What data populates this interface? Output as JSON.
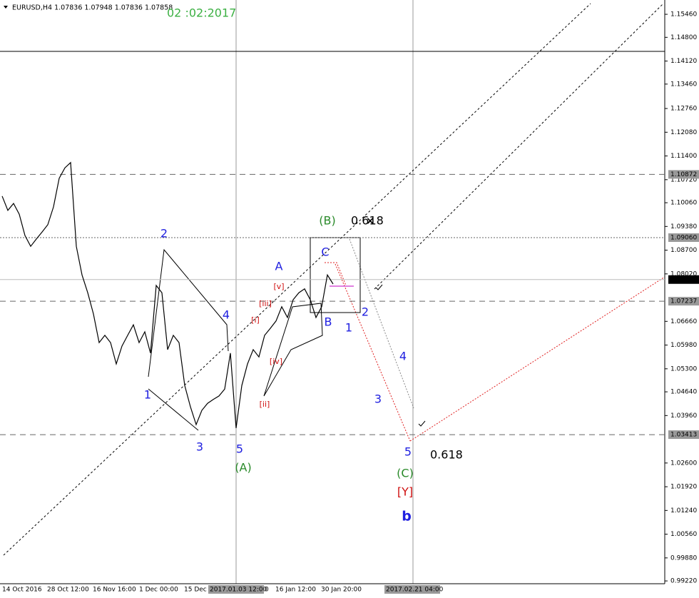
{
  "chart_data": {
    "type": "line",
    "title": "EURUSD,H4  1.07836 1.07948 1.07836 1.07858",
    "subtitle": "02 :02:2017",
    "ylim": [
      0.9914,
      1.1587
    ],
    "yticks": [
      {
        "value": 1.1546,
        "label": "1.15460"
      },
      {
        "value": 1.148,
        "label": "1.14800"
      },
      {
        "value": 1.1412,
        "label": "1.14120"
      },
      {
        "value": 1.1346,
        "label": "1.13460"
      },
      {
        "value": 1.1276,
        "label": "1.12760"
      },
      {
        "value": 1.1208,
        "label": "1.12080"
      },
      {
        "value": 1.114,
        "label": "1.11400"
      },
      {
        "value": 1.1072,
        "label": "1.10720"
      },
      {
        "value": 1.1006,
        "label": "1.10060"
      },
      {
        "value": 1.0938,
        "label": "1.09380"
      },
      {
        "value": 1.087,
        "label": "1.08700"
      },
      {
        "value": 1.0802,
        "label": "1.08020"
      },
      {
        "value": 1.0666,
        "label": "1.06660"
      },
      {
        "value": 1.0598,
        "label": "1.05980"
      },
      {
        "value": 1.053,
        "label": "1.05300"
      },
      {
        "value": 1.0464,
        "label": "1.04640"
      },
      {
        "value": 1.0396,
        "label": "1.03960"
      },
      {
        "value": 1.026,
        "label": "1.02600"
      },
      {
        "value": 1.0192,
        "label": "1.01920"
      },
      {
        "value": 1.0124,
        "label": "1.01240"
      },
      {
        "value": 1.0056,
        "label": "1.00560"
      },
      {
        "value": 0.9988,
        "label": "0.99880"
      },
      {
        "value": 0.9922,
        "label": "0.99220"
      }
    ],
    "levels": [
      1.10872,
      {
        "value": 1.0906,
        "label": "1.09060"
      },
      1.07858,
      1.07237,
      1.03413
    ],
    "x_labels": [
      "14 Oct 2016",
      "28 Oct 12:00",
      "16 Nov 16:00",
      "1 Dec 00:00",
      "15 Dec",
      "0",
      "16 Jan 12:00",
      "30 Jan 20:00",
      "2017.01.03 12:00",
      "2017.02.21 04:00"
    ],
    "color": "#000000",
    "values": [
      1.1025,
      1.0984,
      1.1004,
      1.0973,
      1.0912,
      1.0881,
      1.0902,
      1.0922,
      1.0943,
      1.0994,
      1.1076,
      1.1106,
      1.1121,
      1.0881,
      1.0799,
      1.0748,
      1.0687,
      1.0605,
      1.0626,
      1.0605,
      1.0544,
      1.0595,
      1.0626,
      1.0656,
      1.0605,
      1.0636,
      1.0575,
      1.0769,
      1.0748,
      1.0585,
      1.0626,
      1.0605,
      1.0482,
      1.0421,
      1.037,
      1.0411,
      1.0431,
      1.0442,
      1.0452,
      1.0472,
      1.0575,
      1.036,
      1.0482,
      1.0544,
      1.0585,
      1.0564,
      1.0626,
      1.0646,
      1.0667,
      1.0708,
      1.0677,
      1.0728,
      1.0748,
      1.0759,
      1.0728,
      1.0677,
      1.0708,
      1.0799,
      1.0773
    ],
    "annotations": [
      {
        "text": "2",
        "color": "#2020e0"
      },
      {
        "text": "4",
        "color": "#2020e0"
      },
      {
        "text": "1",
        "color": "#2020e0"
      },
      {
        "text": "3",
        "color": "#2020e0"
      },
      {
        "text": "5",
        "color": "#2020e0"
      },
      {
        "text": "(A)",
        "color": "#2a8a2a"
      },
      {
        "text": "A",
        "color": "#2020e0"
      },
      {
        "text": "[v]",
        "color": "#d01010"
      },
      {
        "text": "[iii]",
        "color": "#d01010"
      },
      {
        "text": "[i]",
        "color": "#d01010"
      },
      {
        "text": "[iv]",
        "color": "#d01010"
      },
      {
        "text": "[ii]",
        "color": "#d01010"
      },
      {
        "text": "C",
        "color": "#2020e0"
      },
      {
        "text": "B",
        "color": "#2020e0"
      },
      {
        "text": "1",
        "color": "#2020e0"
      },
      {
        "text": "2",
        "color": "#2020e0"
      },
      {
        "text": "4",
        "color": "#2020e0"
      },
      {
        "text": "3",
        "color": "#2020e0"
      },
      {
        "text": "5",
        "color": "#2020e0"
      },
      {
        "text": "0.618",
        "color": "#000000"
      },
      {
        "text": "(C)",
        "color": "#2a8a2a"
      },
      {
        "text": "[Y]",
        "color": "#d01010"
      },
      {
        "text": "b",
        "color": "#2020e0"
      },
      {
        "text": "(B)",
        "color": "#2a8a2a"
      },
      {
        "text": "0.618",
        "color": "#000000"
      },
      {
        "text": "×",
        "color": "#000000"
      }
    ]
  }
}
